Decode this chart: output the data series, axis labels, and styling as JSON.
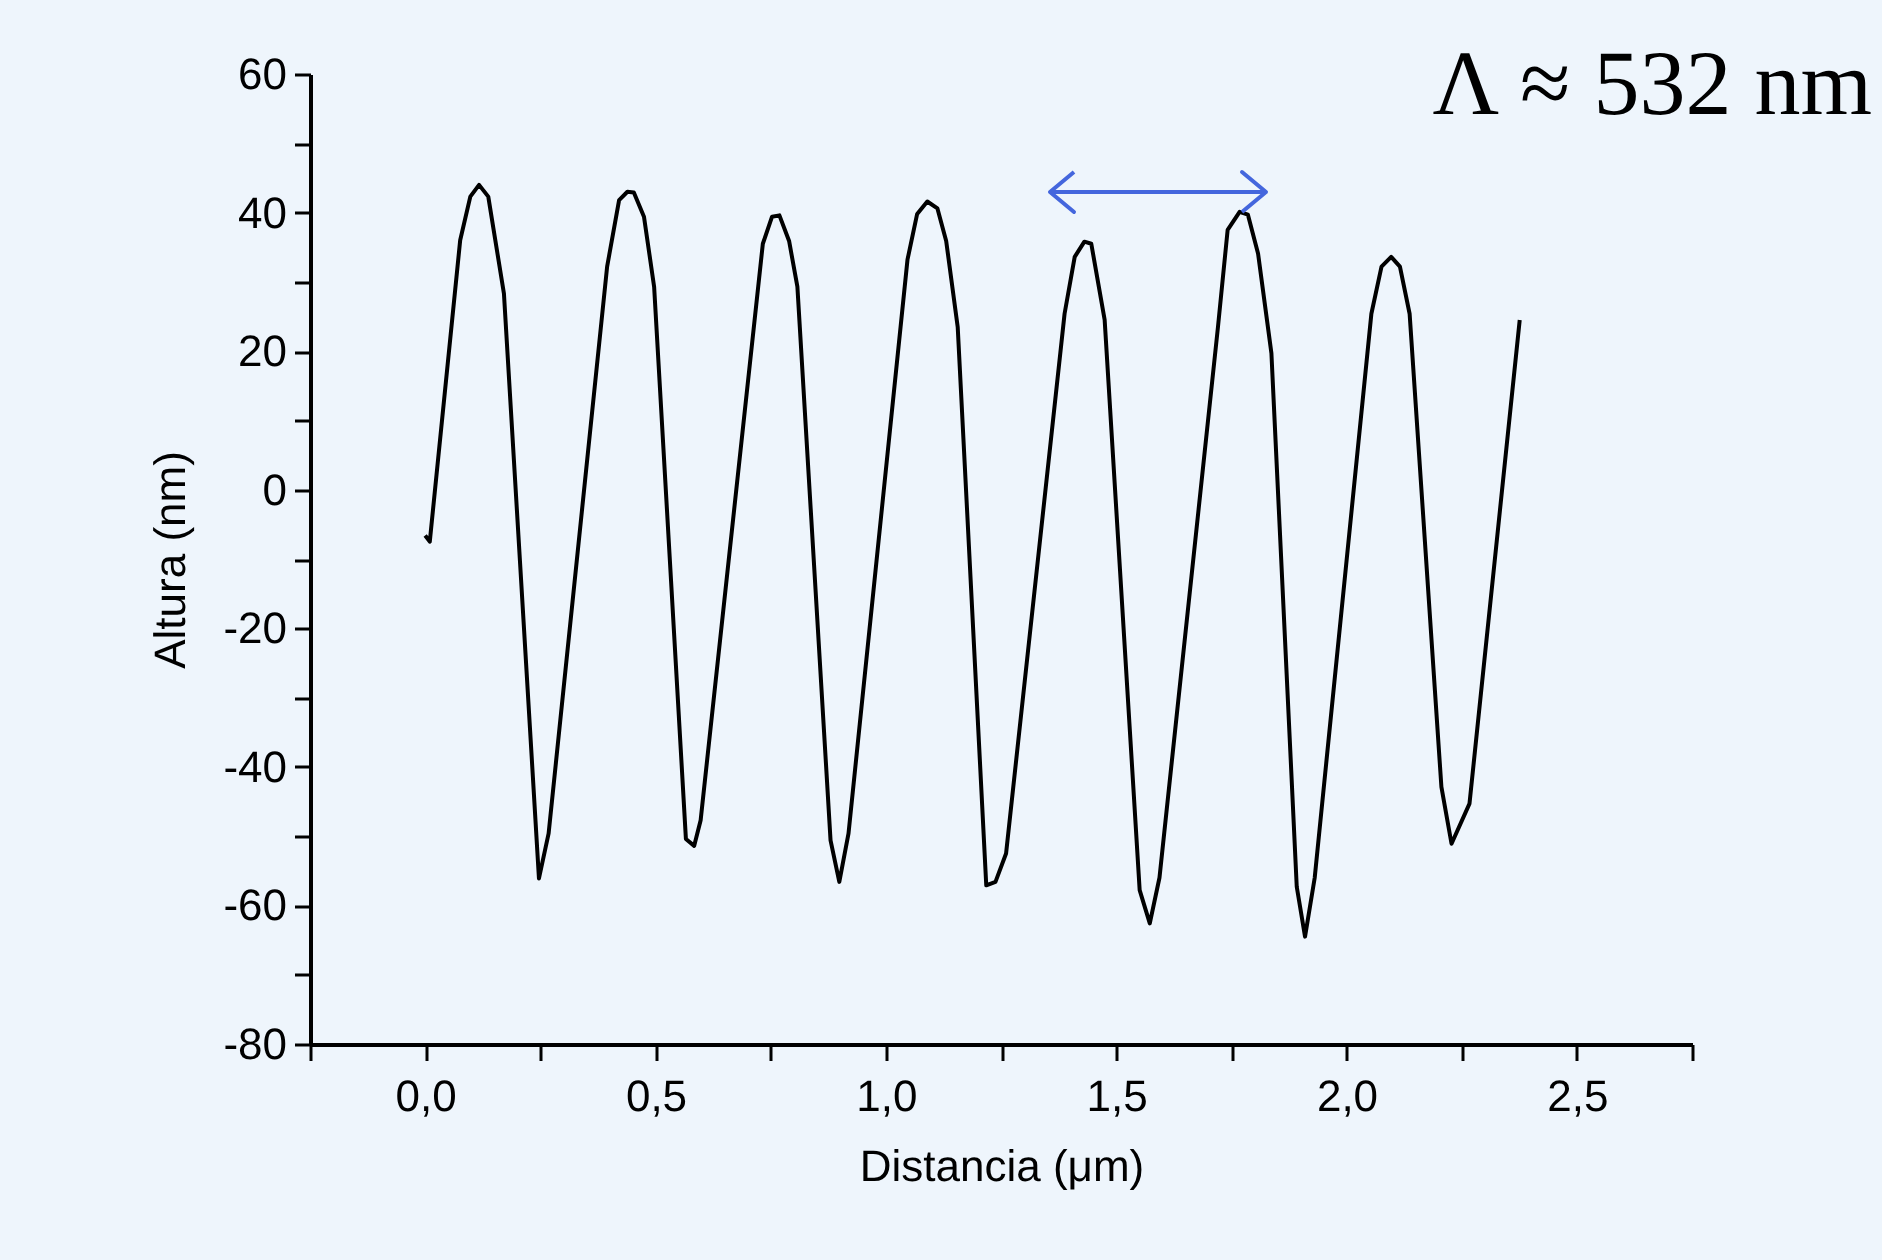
{
  "chart_data": {
    "type": "line",
    "xlabel": "Distancia (μm)",
    "ylabel": "Altura (nm)",
    "annotations": [
      "Λ ≈ 532 nm"
    ],
    "xlim": [
      -0.25,
      2.75
    ],
    "ylim": [
      -80,
      60
    ],
    "xticks": [
      {
        "value": -0.25,
        "label": null
      },
      {
        "value": 0,
        "label": "0,0"
      },
      {
        "value": 0.25,
        "label": null
      },
      {
        "value": 0.5,
        "label": "0,5"
      },
      {
        "value": 0.75,
        "label": null
      },
      {
        "value": 1,
        "label": "1,0"
      },
      {
        "value": 1.25,
        "label": null
      },
      {
        "value": 1.5,
        "label": "1,5"
      },
      {
        "value": 1.75,
        "label": null
      },
      {
        "value": 2,
        "label": "2,0"
      },
      {
        "value": 2.25,
        "label": null
      },
      {
        "value": 2.5,
        "label": "2,5"
      },
      {
        "value": 2.75,
        "label": null
      }
    ],
    "yticks": [
      -80,
      {
        "value": -70,
        "label": null
      },
      -60,
      {
        "value": -50,
        "label": null
      },
      -40,
      {
        "value": -30,
        "label": null
      },
      -20,
      {
        "value": -10,
        "label": null
      },
      0,
      {
        "value": 10,
        "label": null
      },
      20,
      {
        "value": 30,
        "label": null
      },
      40,
      {
        "value": 50,
        "label": null
      },
      60
    ],
    "grid": false,
    "marker": "none",
    "line_style": "solid",
    "series": [
      {
        "color": "#000000",
        "x": [
          0.0,
          0.01,
          0.076,
          0.098,
          0.117,
          0.137,
          0.171,
          0.247,
          0.268,
          0.395,
          0.421,
          0.439,
          0.453,
          0.475,
          0.497,
          0.566,
          0.584,
          0.598,
          0.733,
          0.753,
          0.769,
          0.79,
          0.808,
          0.88,
          0.899,
          0.919,
          1.047,
          1.068,
          1.09,
          1.112,
          1.131,
          1.156,
          1.218,
          1.238,
          1.261,
          1.388,
          1.41,
          1.431,
          1.446,
          1.475,
          1.551,
          1.573,
          1.594,
          1.721,
          1.742,
          1.768,
          1.786,
          1.808,
          1.837,
          1.892,
          1.91,
          1.931,
          2.054,
          2.076,
          2.097,
          2.116,
          2.137,
          2.206,
          2.228,
          2.267,
          2.376
        ],
        "values": [
          -6.6,
          -7.5,
          36,
          42.3,
          44,
          42.3,
          28.3,
          -56.1,
          -49.6,
          32.2,
          41.8,
          43,
          42.9,
          39.4,
          29.3,
          -50.4,
          -51.4,
          -47.7,
          35.5,
          39.4,
          39.6,
          35.9,
          29.3,
          -50.6,
          -56.6,
          -49.6,
          33.2,
          39.8,
          41.6,
          40.6,
          35.9,
          23.5,
          -57.1,
          -56.6,
          -52.5,
          25.4,
          33.6,
          35.8,
          35.5,
          24.5,
          -57.8,
          -62.6,
          -56,
          23.5,
          37.5,
          40.1,
          39.7,
          34.1,
          19.7,
          -57.3,
          -64.5,
          -56,
          25.4,
          32.2,
          33.6,
          32.2,
          25.4,
          -42.9,
          -51.1,
          -45.3,
          24.5
        ]
      }
    ]
  }
}
